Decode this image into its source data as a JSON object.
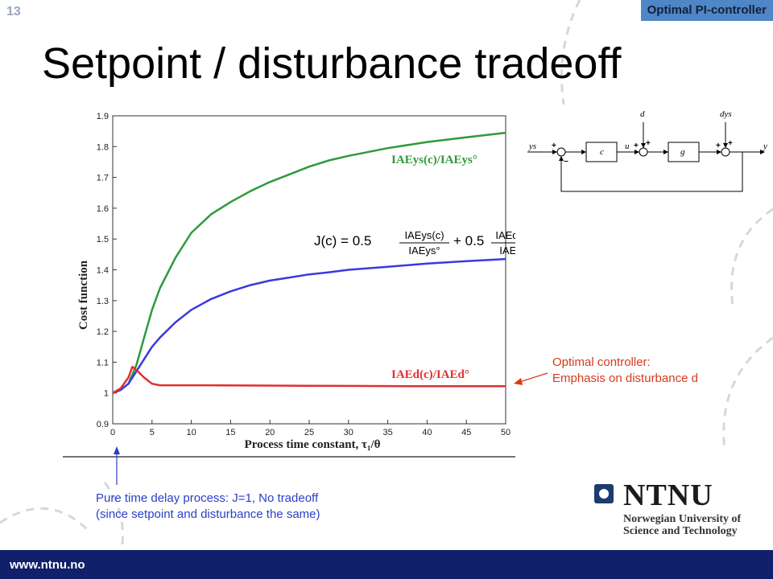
{
  "slide_number": "13",
  "section_tag": "Optimal PI-controller",
  "title": "Setpoint / disturbance tradeoff",
  "chart_data": {
    "type": "line",
    "xlabel": "Process time constant, τ₁/θ",
    "ylabel": "Cost function",
    "xlim": [
      0,
      50
    ],
    "ylim": [
      0.9,
      1.9
    ],
    "xticks": [
      0,
      5,
      10,
      15,
      20,
      25,
      30,
      35,
      40,
      45,
      50
    ],
    "yticks": [
      0.9,
      1,
      1.1,
      1.2,
      1.3,
      1.4,
      1.5,
      1.6,
      1.7,
      1.8,
      1.9
    ],
    "xtick_labels": [
      "0",
      "5",
      "10",
      "15",
      "20",
      "25",
      "30",
      "35",
      "40",
      "45",
      "50"
    ],
    "ytick_labels": [
      "0.9",
      "1",
      "1.1",
      "1.2",
      "1.3",
      "1.4",
      "1.5",
      "1.6",
      "1.7",
      "1.8",
      "1.9"
    ],
    "grid": false,
    "series": [
      {
        "name": "IAEys(c)/IAEys°",
        "color": "#2e9a3a",
        "x": [
          0,
          1,
          2,
          3,
          4,
          5,
          6,
          8,
          10,
          12.5,
          15,
          17.5,
          20,
          22.5,
          25,
          27.5,
          30,
          35,
          40,
          45,
          50
        ],
        "y": [
          1.0,
          1.01,
          1.03,
          1.09,
          1.18,
          1.27,
          1.34,
          1.44,
          1.52,
          1.58,
          1.62,
          1.655,
          1.685,
          1.71,
          1.735,
          1.755,
          1.77,
          1.795,
          1.815,
          1.83,
          1.845
        ]
      },
      {
        "name": "",
        "color": "#3a3ae0",
        "x": [
          0,
          1,
          2,
          3,
          4,
          5,
          6,
          8,
          10,
          12.5,
          15,
          17.5,
          20,
          22.5,
          25,
          27.5,
          30,
          35,
          40,
          45,
          50
        ],
        "y": [
          1.0,
          1.01,
          1.03,
          1.07,
          1.11,
          1.15,
          1.18,
          1.23,
          1.27,
          1.305,
          1.33,
          1.35,
          1.365,
          1.375,
          1.385,
          1.392,
          1.4,
          1.41,
          1.42,
          1.428,
          1.435
        ]
      },
      {
        "name": "IAEd(c)/IAEd°",
        "color": "#e03030",
        "x": [
          0,
          1,
          2,
          2.5,
          3,
          4,
          5,
          6,
          10,
          20,
          30,
          40,
          50
        ],
        "y": [
          1.0,
          1.015,
          1.05,
          1.085,
          1.075,
          1.05,
          1.03,
          1.025,
          1.025,
          1.024,
          1.023,
          1.022,
          1.022
        ]
      }
    ],
    "annotations": {
      "formula_lhs": "J(c) = 0.5",
      "formula_t1_num": "IAEys(c)",
      "formula_t1_den": "IAEys°",
      "formula_plus": "+ 0.5",
      "formula_t2_num": "IAEd(c)",
      "formula_t2_den": "IAEd°"
    }
  },
  "block_diagram": {
    "input": "ys",
    "disturbance": "d",
    "setpoint_disturbance": "dys",
    "controller": "c",
    "plant": "g",
    "control_signal": "u",
    "output": "y",
    "plus": "+",
    "minus": "−"
  },
  "callouts": {
    "optimal_line1": "Optimal controller:",
    "optimal_line2": "Emphasis on disturbance d",
    "pure_delay_line1": "Pure time delay process: J=1, No tradeoff",
    "pure_delay_line2": "(since setpoint and disturbance the same)"
  },
  "logo": {
    "name": "NTNU",
    "line1": "Norwegian University of",
    "line2": "Science and Technology"
  },
  "footer": {
    "url": "www.ntnu.no"
  }
}
